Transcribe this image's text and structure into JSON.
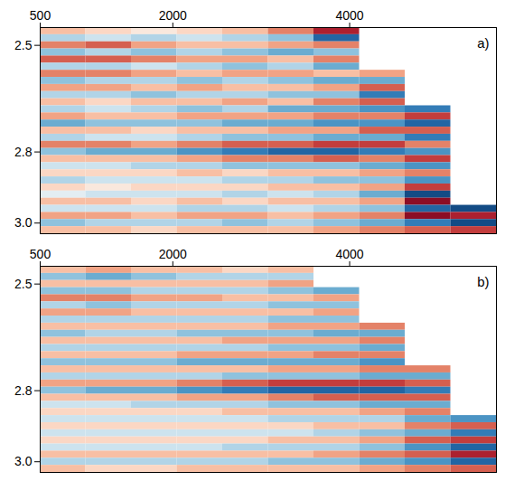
{
  "chart_data": [
    {
      "type": "heatmap",
      "title": "a)",
      "xlim": [
        500,
        5660
      ],
      "xticks": [
        500,
        2000,
        4000
      ],
      "ylim": [
        2.45,
        3.03
      ],
      "yticks": [
        2.5,
        2.8,
        {
          "value": 3,
          "label": "3.0"
        }
      ],
      "value_range": [
        -1,
        1
      ],
      "x_edges": [
        500,
        1016,
        1532,
        2048,
        2564,
        3080,
        3596,
        4112,
        4628,
        5144,
        5660
      ],
      "y_edges": [
        2.45,
        2.47,
        2.49,
        2.51,
        2.53,
        2.55,
        2.57,
        2.59,
        2.61,
        2.63,
        2.65,
        2.67,
        2.69,
        2.71,
        2.73,
        2.75,
        2.77,
        2.79,
        2.81,
        2.83,
        2.85,
        2.87,
        2.89,
        2.91,
        2.93,
        2.95,
        2.97,
        2.99,
        3.01,
        3.03
      ],
      "values": [
        [
          0.3,
          0.2,
          0.1,
          0.2,
          0.3,
          0.5,
          0.8,
          null,
          null,
          null
        ],
        [
          -0.3,
          -0.2,
          -0.3,
          -0.2,
          -0.3,
          -0.4,
          -0.8,
          null,
          null,
          null
        ],
        [
          0.5,
          0.6,
          0.4,
          0.3,
          0.3,
          0.4,
          0.5,
          null,
          null,
          null
        ],
        [
          -0.4,
          -0.3,
          -0.4,
          -0.3,
          -0.4,
          -0.5,
          -0.4,
          null,
          null,
          null
        ],
        [
          0.6,
          0.6,
          0.5,
          0.4,
          0.4,
          0.3,
          0.5,
          null,
          null,
          null
        ],
        [
          -0.3,
          -0.3,
          -0.2,
          -0.3,
          -0.4,
          -0.3,
          -0.5,
          null,
          null,
          null
        ],
        [
          0.5,
          0.5,
          0.4,
          0.3,
          0.4,
          0.4,
          0.3,
          0.4,
          null,
          null
        ],
        [
          -0.4,
          -0.3,
          -0.3,
          -0.4,
          -0.3,
          -0.4,
          -0.5,
          -0.5,
          null,
          null
        ],
        [
          0.4,
          0.4,
          0.3,
          0.4,
          0.3,
          0.3,
          0.4,
          0.6,
          null,
          null
        ],
        [
          -0.3,
          -0.3,
          -0.4,
          -0.3,
          -0.3,
          -0.4,
          -0.4,
          -0.7,
          null,
          null
        ],
        [
          0.3,
          0.2,
          0.3,
          0.3,
          0.4,
          0.3,
          0.5,
          0.6,
          null,
          null
        ],
        [
          -0.3,
          -0.2,
          -0.3,
          -0.4,
          -0.3,
          -0.5,
          -0.5,
          -0.6,
          -0.7,
          null
        ],
        [
          0.4,
          0.3,
          0.3,
          0.4,
          0.4,
          0.4,
          0.5,
          0.5,
          0.7,
          null
        ],
        [
          -0.5,
          -0.4,
          -0.4,
          -0.4,
          -0.5,
          -0.5,
          -0.6,
          -0.6,
          -0.8,
          null
        ],
        [
          0.3,
          0.3,
          0.2,
          0.3,
          0.3,
          0.4,
          0.4,
          0.6,
          0.6,
          null
        ],
        [
          -0.3,
          -0.2,
          -0.2,
          -0.3,
          -0.4,
          -0.4,
          -0.5,
          -0.5,
          -0.7,
          null
        ],
        [
          0.5,
          0.5,
          0.4,
          0.5,
          0.6,
          0.6,
          0.7,
          0.7,
          0.5,
          null
        ],
        [
          -0.4,
          -0.5,
          -0.5,
          -0.6,
          -0.7,
          -0.8,
          -0.8,
          -0.7,
          -0.6,
          null
        ],
        [
          0.3,
          0.3,
          0.3,
          0.4,
          0.5,
          0.5,
          0.6,
          0.5,
          0.7,
          null
        ],
        [
          -0.2,
          -0.2,
          -0.3,
          -0.3,
          -0.4,
          -0.4,
          -0.4,
          -0.5,
          -0.6,
          null
        ],
        [
          0.2,
          0.2,
          0.2,
          0.3,
          0.2,
          0.3,
          0.3,
          0.4,
          0.5,
          null
        ],
        [
          -0.3,
          -0.2,
          -0.2,
          -0.2,
          -0.3,
          -0.3,
          -0.4,
          -0.4,
          -0.6,
          null
        ],
        [
          0.2,
          0.1,
          0.2,
          0.2,
          0.2,
          0.3,
          0.3,
          0.4,
          0.7,
          null
        ],
        [
          -0.1,
          -0.2,
          -0.2,
          -0.2,
          -0.3,
          -0.2,
          -0.3,
          -0.5,
          -0.9,
          null
        ],
        [
          0.3,
          0.3,
          0.2,
          0.3,
          0.2,
          0.3,
          0.3,
          0.4,
          0.9,
          null
        ],
        [
          -0.2,
          -0.2,
          -0.2,
          -0.3,
          -0.3,
          -0.2,
          -0.3,
          -0.4,
          -0.8,
          -0.9
        ],
        [
          0.4,
          0.4,
          0.3,
          0.4,
          0.4,
          0.3,
          0.4,
          0.5,
          0.9,
          0.8
        ],
        [
          -0.4,
          -0.3,
          -0.3,
          -0.3,
          -0.4,
          -0.3,
          -0.4,
          -0.5,
          -0.7,
          -0.9
        ],
        [
          0.3,
          0.3,
          0.2,
          0.3,
          0.3,
          0.3,
          0.4,
          0.5,
          0.6,
          0.7
        ]
      ]
    },
    {
      "type": "heatmap",
      "title": "b)",
      "xlim": [
        500,
        5660
      ],
      "xticks": [
        500,
        2000,
        4000
      ],
      "ylim": [
        2.45,
        3.03
      ],
      "yticks": [
        2.5,
        2.8,
        {
          "value": 3,
          "label": "3.0"
        }
      ],
      "value_range": [
        -1,
        1
      ],
      "x_edges": [
        500,
        1016,
        1532,
        2048,
        2564,
        3080,
        3596,
        4112,
        4628,
        5144,
        5660
      ],
      "y_edges": [
        2.45,
        2.47,
        2.49,
        2.51,
        2.53,
        2.55,
        2.57,
        2.59,
        2.61,
        2.63,
        2.65,
        2.67,
        2.69,
        2.71,
        2.73,
        2.75,
        2.77,
        2.79,
        2.81,
        2.83,
        2.85,
        2.87,
        2.89,
        2.91,
        2.93,
        2.95,
        2.97,
        2.99,
        3.01,
        3.03
      ],
      "values": [
        [
          0.3,
          0.4,
          0.3,
          0.3,
          0.2,
          0.3,
          null,
          null,
          null,
          null
        ],
        [
          -0.4,
          -0.5,
          -0.4,
          -0.3,
          -0.3,
          -0.3,
          null,
          null,
          null,
          null
        ],
        [
          0.3,
          0.3,
          0.3,
          0.3,
          0.3,
          0.4,
          null,
          null,
          null,
          null
        ],
        [
          -0.4,
          -0.4,
          -0.3,
          -0.3,
          -0.3,
          -0.4,
          -0.5,
          null,
          null,
          null
        ],
        [
          0.5,
          0.5,
          0.4,
          0.4,
          0.3,
          0.3,
          0.4,
          null,
          null,
          null
        ],
        [
          -0.3,
          -0.4,
          -0.3,
          -0.3,
          -0.3,
          -0.4,
          -0.4,
          null,
          null,
          null
        ],
        [
          0.4,
          0.4,
          0.3,
          0.3,
          0.3,
          0.3,
          0.4,
          null,
          null,
          null
        ],
        [
          -0.3,
          -0.3,
          -0.3,
          -0.3,
          -0.3,
          -0.4,
          -0.4,
          null,
          null,
          null
        ],
        [
          0.3,
          0.3,
          0.3,
          0.3,
          0.3,
          0.4,
          0.4,
          0.5,
          null,
          null
        ],
        [
          -0.4,
          -0.3,
          -0.3,
          -0.4,
          -0.4,
          -0.4,
          -0.5,
          -0.5,
          null,
          null
        ],
        [
          0.3,
          0.3,
          0.3,
          0.3,
          0.4,
          0.4,
          0.4,
          0.5,
          null,
          null
        ],
        [
          -0.3,
          -0.3,
          -0.3,
          -0.3,
          -0.3,
          -0.4,
          -0.4,
          -0.5,
          null,
          null
        ],
        [
          0.3,
          0.3,
          0.3,
          0.4,
          0.4,
          0.4,
          0.5,
          0.5,
          null,
          null
        ],
        [
          -0.4,
          -0.4,
          -0.4,
          -0.5,
          -0.5,
          -0.5,
          -0.5,
          -0.6,
          null,
          null
        ],
        [
          0.3,
          0.3,
          0.3,
          0.3,
          0.3,
          0.4,
          0.4,
          0.5,
          0.5,
          null
        ],
        [
          -0.3,
          -0.3,
          -0.3,
          -0.3,
          -0.4,
          -0.4,
          -0.4,
          -0.5,
          -0.5,
          null
        ],
        [
          0.4,
          0.4,
          0.4,
          0.5,
          0.6,
          0.7,
          0.7,
          0.7,
          0.6,
          null
        ],
        [
          -0.4,
          -0.5,
          -0.5,
          -0.6,
          -0.7,
          -0.8,
          -0.8,
          -0.8,
          -0.7,
          null
        ],
        [
          0.3,
          0.3,
          0.3,
          0.4,
          0.4,
          0.5,
          0.6,
          0.6,
          0.6,
          null
        ],
        [
          -0.2,
          -0.2,
          -0.3,
          -0.3,
          -0.3,
          -0.4,
          -0.4,
          -0.5,
          -0.5,
          null
        ],
        [
          0.2,
          0.2,
          0.2,
          0.2,
          0.3,
          0.3,
          0.3,
          0.4,
          0.5,
          null
        ],
        [
          -0.2,
          -0.2,
          -0.2,
          -0.2,
          -0.2,
          -0.3,
          -0.3,
          -0.3,
          -0.5,
          -0.6
        ],
        [
          0.2,
          0.2,
          0.2,
          0.2,
          0.2,
          0.2,
          0.3,
          0.3,
          0.5,
          0.6
        ],
        [
          -0.2,
          -0.2,
          -0.2,
          -0.2,
          -0.2,
          -0.2,
          -0.3,
          -0.4,
          -0.5,
          -0.7
        ],
        [
          0.2,
          0.2,
          0.2,
          0.2,
          0.2,
          0.3,
          0.3,
          0.4,
          0.6,
          0.7
        ],
        [
          -0.2,
          -0.2,
          -0.2,
          -0.2,
          -0.3,
          -0.3,
          -0.3,
          -0.4,
          -0.6,
          -0.8
        ],
        [
          0.3,
          0.3,
          0.3,
          0.3,
          0.3,
          0.3,
          0.4,
          0.5,
          0.6,
          0.8
        ],
        [
          -0.3,
          -0.3,
          -0.3,
          -0.3,
          -0.3,
          -0.4,
          -0.4,
          -0.5,
          -0.6,
          -0.8
        ],
        [
          0.3,
          0.2,
          0.2,
          0.3,
          0.3,
          0.3,
          0.3,
          0.4,
          0.5,
          0.6
        ]
      ]
    }
  ]
}
